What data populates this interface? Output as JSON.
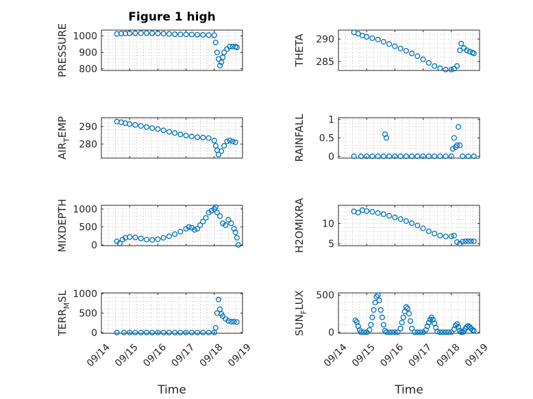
{
  "figure_title": "Figure 1 high",
  "chart_data": [
    {
      "type": "scatter",
      "title": "Figure 1 high",
      "ylabel": "PRESSURE",
      "ylabel_sub": "",
      "xlabel": "",
      "ylim": [
        790,
        1035
      ],
      "yticks": [
        800,
        900,
        1000
      ],
      "xlim": [
        0,
        5
      ],
      "xticks": [
        0,
        1,
        2,
        3,
        4,
        5
      ],
      "xticklabels": [],
      "grid": true,
      "marker": "circle",
      "color": "#0072BD",
      "points": [
        [
          0.55,
          1012
        ],
        [
          0.7,
          1014
        ],
        [
          0.85,
          1015
        ],
        [
          1.0,
          1016
        ],
        [
          1.2,
          1016
        ],
        [
          1.4,
          1017
        ],
        [
          1.6,
          1017
        ],
        [
          1.8,
          1016
        ],
        [
          2.0,
          1016
        ],
        [
          2.2,
          1014
        ],
        [
          2.4,
          1012
        ],
        [
          2.6,
          1010
        ],
        [
          2.8,
          1009
        ],
        [
          3.0,
          1009
        ],
        [
          3.2,
          1008
        ],
        [
          3.4,
          1007
        ],
        [
          3.6,
          1006
        ],
        [
          3.8,
          1005
        ],
        [
          4.0,
          1004
        ],
        [
          4.05,
          960
        ],
        [
          4.1,
          900
        ],
        [
          4.15,
          860
        ],
        [
          4.2,
          820
        ],
        [
          4.25,
          840
        ],
        [
          4.3,
          870
        ],
        [
          4.35,
          900
        ],
        [
          4.45,
          920
        ],
        [
          4.55,
          935
        ],
        [
          4.65,
          935
        ],
        [
          4.75,
          935
        ],
        [
          4.8,
          930
        ]
      ]
    },
    {
      "type": "scatter",
      "title": "",
      "ylabel": "THETA",
      "ylabel_sub": "",
      "xlabel": "",
      "ylim": [
        283,
        292
      ],
      "yticks": [
        285,
        290
      ],
      "xlim": [
        0,
        5
      ],
      "xticks": [
        0,
        1,
        2,
        3,
        4,
        5
      ],
      "xticklabels": [],
      "grid": true,
      "marker": "circle",
      "color": "#0072BD",
      "points": [
        [
          0.55,
          291.5
        ],
        [
          0.7,
          291.2
        ],
        [
          0.85,
          290.8
        ],
        [
          1.0,
          290.5
        ],
        [
          1.2,
          290.2
        ],
        [
          1.4,
          289.9
        ],
        [
          1.6,
          289.4
        ],
        [
          1.8,
          288.9
        ],
        [
          2.0,
          288.4
        ],
        [
          2.2,
          287.9
        ],
        [
          2.4,
          287.4
        ],
        [
          2.6,
          286.8
        ],
        [
          2.8,
          286.2
        ],
        [
          3.0,
          285.5
        ],
        [
          3.2,
          284.7
        ],
        [
          3.4,
          284.0
        ],
        [
          3.6,
          283.5
        ],
        [
          3.8,
          283.2
        ],
        [
          4.0,
          283.2
        ],
        [
          4.1,
          283.4
        ],
        [
          4.2,
          284.0
        ],
        [
          4.3,
          287.5
        ],
        [
          4.35,
          289.0
        ],
        [
          4.45,
          288.0
        ],
        [
          4.55,
          287.5
        ],
        [
          4.65,
          287.2
        ],
        [
          4.75,
          287.0
        ],
        [
          4.8,
          286.8
        ]
      ]
    },
    {
      "type": "scatter",
      "title": "",
      "ylabel": "AIR",
      "ylabel_sub": "T",
      "ylabel_post": "EMP",
      "xlabel": "",
      "ylim": [
        272,
        295
      ],
      "yticks": [
        280,
        290
      ],
      "xlim": [
        0,
        5
      ],
      "xticks": [
        0,
        1,
        2,
        3,
        4,
        5
      ],
      "xticklabels": [],
      "grid": true,
      "marker": "circle",
      "color": "#0072BD",
      "points": [
        [
          0.55,
          292.8
        ],
        [
          0.7,
          292.4
        ],
        [
          0.85,
          291.9
        ],
        [
          1.0,
          291.4
        ],
        [
          1.2,
          290.9
        ],
        [
          1.4,
          290.3
        ],
        [
          1.6,
          289.7
        ],
        [
          1.8,
          289.1
        ],
        [
          2.0,
          288.5
        ],
        [
          2.2,
          287.8
        ],
        [
          2.4,
          287.0
        ],
        [
          2.6,
          286.3
        ],
        [
          2.8,
          285.5
        ],
        [
          3.0,
          284.8
        ],
        [
          3.2,
          284.3
        ],
        [
          3.4,
          283.9
        ],
        [
          3.6,
          283.7
        ],
        [
          3.8,
          283.4
        ],
        [
          4.0,
          282.0
        ],
        [
          4.05,
          279.0
        ],
        [
          4.1,
          276.5
        ],
        [
          4.15,
          274.0
        ],
        [
          4.25,
          276.0
        ],
        [
          4.35,
          279.0
        ],
        [
          4.45,
          281.5
        ],
        [
          4.55,
          282.0
        ],
        [
          4.65,
          281.5
        ],
        [
          4.75,
          281.0
        ]
      ]
    },
    {
      "type": "scatter",
      "title": "",
      "ylabel": "RAINFALL",
      "ylabel_sub": "",
      "xlabel": "",
      "ylim": [
        -0.05,
        1.05
      ],
      "yticks": [
        0,
        0.5,
        1
      ],
      "xlim": [
        0,
        5
      ],
      "xticks": [
        0,
        1,
        2,
        3,
        4,
        5
      ],
      "xticklabels": [],
      "grid": true,
      "marker": "circle",
      "color": "#0072BD",
      "points": [
        [
          0.55,
          0
        ],
        [
          0.8,
          0
        ],
        [
          1.0,
          0
        ],
        [
          1.2,
          0
        ],
        [
          1.4,
          0
        ],
        [
          1.6,
          0
        ],
        [
          1.65,
          0.6
        ],
        [
          1.7,
          0.5
        ],
        [
          1.8,
          0
        ],
        [
          2.0,
          0
        ],
        [
          2.2,
          0
        ],
        [
          2.4,
          0
        ],
        [
          2.6,
          0
        ],
        [
          2.8,
          0
        ],
        [
          3.0,
          0
        ],
        [
          3.2,
          0
        ],
        [
          3.4,
          0
        ],
        [
          3.6,
          0
        ],
        [
          3.8,
          0
        ],
        [
          4.0,
          0
        ],
        [
          4.05,
          0.2
        ],
        [
          4.1,
          0.5
        ],
        [
          4.15,
          0.25
        ],
        [
          4.2,
          0.3
        ],
        [
          4.25,
          0.8
        ],
        [
          4.3,
          0.3
        ],
        [
          4.4,
          0
        ],
        [
          4.6,
          0
        ],
        [
          4.8,
          0
        ]
      ]
    },
    {
      "type": "scatter",
      "title": "",
      "ylabel": "MIXDEPTH",
      "ylabel_sub": "",
      "xlabel": "",
      "ylim": [
        -20,
        1100
      ],
      "yticks": [
        0,
        500,
        1000
      ],
      "xlim": [
        0,
        5
      ],
      "xticks": [
        0,
        1,
        2,
        3,
        4,
        5
      ],
      "xticklabels": [],
      "grid": true,
      "marker": "circle",
      "color": "#0072BD",
      "points": [
        [
          0.55,
          100
        ],
        [
          0.65,
          50
        ],
        [
          0.75,
          150
        ],
        [
          0.85,
          200
        ],
        [
          1.0,
          220
        ],
        [
          1.2,
          210
        ],
        [
          1.4,
          180
        ],
        [
          1.6,
          150
        ],
        [
          1.8,
          140
        ],
        [
          2.0,
          160
        ],
        [
          2.2,
          200
        ],
        [
          2.4,
          240
        ],
        [
          2.6,
          300
        ],
        [
          2.8,
          370
        ],
        [
          3.0,
          450
        ],
        [
          3.1,
          500
        ],
        [
          3.2,
          480
        ],
        [
          3.3,
          420
        ],
        [
          3.4,
          450
        ],
        [
          3.5,
          550
        ],
        [
          3.6,
          650
        ],
        [
          3.7,
          750
        ],
        [
          3.8,
          900
        ],
        [
          3.9,
          950
        ],
        [
          4.0,
          1000
        ],
        [
          4.05,
          1050
        ],
        [
          4.1,
          900
        ],
        [
          4.2,
          800
        ],
        [
          4.3,
          600
        ],
        [
          4.4,
          550
        ],
        [
          4.5,
          700
        ],
        [
          4.6,
          600
        ],
        [
          4.7,
          450
        ],
        [
          4.75,
          350
        ],
        [
          4.8,
          200
        ],
        [
          4.85,
          0
        ]
      ]
    },
    {
      "type": "scatter",
      "title": "",
      "ylabel": "H2OMIXRA",
      "ylabel_sub": "",
      "xlabel": "",
      "ylim": [
        4.5,
        14.5
      ],
      "yticks": [
        5,
        10
      ],
      "xlim": [
        0,
        5
      ],
      "xticks": [
        0,
        1,
        2,
        3,
        4,
        5
      ],
      "xticklabels": [],
      "grid": true,
      "marker": "circle",
      "color": "#0072BD",
      "points": [
        [
          0.55,
          13.0
        ],
        [
          0.7,
          12.7
        ],
        [
          0.85,
          13.3
        ],
        [
          1.0,
          13.1
        ],
        [
          1.2,
          12.9
        ],
        [
          1.4,
          12.6
        ],
        [
          1.6,
          12.3
        ],
        [
          1.8,
          11.9
        ],
        [
          2.0,
          11.5
        ],
        [
          2.2,
          11.1
        ],
        [
          2.4,
          10.6
        ],
        [
          2.6,
          10.1
        ],
        [
          2.8,
          9.5
        ],
        [
          3.0,
          8.8
        ],
        [
          3.2,
          8.1
        ],
        [
          3.4,
          7.5
        ],
        [
          3.6,
          7.0
        ],
        [
          3.8,
          6.8
        ],
        [
          4.0,
          6.8
        ],
        [
          4.1,
          7.0
        ],
        [
          4.2,
          5.4
        ],
        [
          4.3,
          5.0
        ],
        [
          4.4,
          5.5
        ],
        [
          4.5,
          5.6
        ],
        [
          4.6,
          5.6
        ],
        [
          4.7,
          5.6
        ],
        [
          4.8,
          5.6
        ]
      ]
    },
    {
      "type": "scatter",
      "title": "",
      "ylabel": "TERR",
      "ylabel_sub": "M",
      "ylabel_post": "SL",
      "xlabel": "Time",
      "ylim": [
        -20,
        1020
      ],
      "yticks": [
        0,
        500,
        1000
      ],
      "xlim": [
        0,
        5
      ],
      "xticks": [
        0,
        1,
        2,
        3,
        4,
        5
      ],
      "xticklabels": [
        "09/14",
        "09/15",
        "09/16",
        "09/17",
        "09/18",
        "09/19"
      ],
      "grid": true,
      "marker": "circle",
      "color": "#0072BD",
      "points": [
        [
          0.55,
          0
        ],
        [
          0.8,
          0
        ],
        [
          1.0,
          0
        ],
        [
          1.2,
          0
        ],
        [
          1.4,
          0
        ],
        [
          1.6,
          0
        ],
        [
          1.8,
          0
        ],
        [
          2.0,
          0
        ],
        [
          2.2,
          0
        ],
        [
          2.4,
          0
        ],
        [
          2.6,
          0
        ],
        [
          2.8,
          0
        ],
        [
          3.0,
          0
        ],
        [
          3.2,
          0
        ],
        [
          3.4,
          0
        ],
        [
          3.6,
          0
        ],
        [
          3.8,
          0
        ],
        [
          4.0,
          0
        ],
        [
          4.05,
          120
        ],
        [
          4.1,
          500
        ],
        [
          4.15,
          850
        ],
        [
          4.2,
          600
        ],
        [
          4.25,
          480
        ],
        [
          4.3,
          420
        ],
        [
          4.4,
          350
        ],
        [
          4.5,
          300
        ],
        [
          4.6,
          280
        ],
        [
          4.7,
          280
        ],
        [
          4.8,
          270
        ]
      ]
    },
    {
      "type": "scatter",
      "title": "",
      "ylabel": "SUN",
      "ylabel_sub": "F",
      "ylabel_post": "LUX",
      "xlabel": "Time",
      "ylim": [
        -15,
        530
      ],
      "yticks": [
        0,
        500
      ],
      "xlim": [
        0,
        5
      ],
      "xticks": [
        0,
        1,
        2,
        3,
        4,
        5
      ],
      "xticklabels": [
        "09/14",
        "09/15",
        "09/16",
        "09/17",
        "09/18",
        "09/19"
      ],
      "grid": true,
      "marker": "circle",
      "color": "#0072BD",
      "points": [
        [
          0.6,
          160
        ],
        [
          0.65,
          140
        ],
        [
          0.7,
          80
        ],
        [
          0.75,
          30
        ],
        [
          0.8,
          0
        ],
        [
          0.9,
          0
        ],
        [
          1.0,
          0
        ],
        [
          1.1,
          30
        ],
        [
          1.15,
          100
        ],
        [
          1.2,
          200
        ],
        [
          1.25,
          300
        ],
        [
          1.3,
          400
        ],
        [
          1.35,
          480
        ],
        [
          1.4,
          500
        ],
        [
          1.45,
          430
        ],
        [
          1.5,
          300
        ],
        [
          1.55,
          200
        ],
        [
          1.6,
          100
        ],
        [
          1.65,
          20
        ],
        [
          1.7,
          0
        ],
        [
          1.8,
          0
        ],
        [
          1.9,
          0
        ],
        [
          2.0,
          0
        ],
        [
          2.1,
          0
        ],
        [
          2.2,
          50
        ],
        [
          2.25,
          130
        ],
        [
          2.3,
          200
        ],
        [
          2.35,
          280
        ],
        [
          2.4,
          340
        ],
        [
          2.45,
          320
        ],
        [
          2.5,
          250
        ],
        [
          2.55,
          150
        ],
        [
          2.6,
          50
        ],
        [
          2.7,
          0
        ],
        [
          2.8,
          0
        ],
        [
          2.9,
          0
        ],
        [
          3.0,
          0
        ],
        [
          3.1,
          30
        ],
        [
          3.15,
          80
        ],
        [
          3.2,
          130
        ],
        [
          3.25,
          170
        ],
        [
          3.3,
          200
        ],
        [
          3.35,
          170
        ],
        [
          3.4,
          120
        ],
        [
          3.45,
          60
        ],
        [
          3.5,
          10
        ],
        [
          3.6,
          0
        ],
        [
          3.7,
          0
        ],
        [
          3.8,
          0
        ],
        [
          3.9,
          0
        ],
        [
          4.0,
          0
        ],
        [
          4.1,
          40
        ],
        [
          4.15,
          90
        ],
        [
          4.2,
          110
        ],
        [
          4.25,
          70
        ],
        [
          4.3,
          20
        ],
        [
          4.35,
          0
        ],
        [
          4.4,
          0
        ],
        [
          4.45,
          20
        ],
        [
          4.5,
          50
        ],
        [
          4.55,
          70
        ],
        [
          4.6,
          85
        ],
        [
          4.65,
          70
        ],
        [
          4.7,
          50
        ],
        [
          4.75,
          30
        ],
        [
          4.8,
          20
        ]
      ]
    }
  ]
}
